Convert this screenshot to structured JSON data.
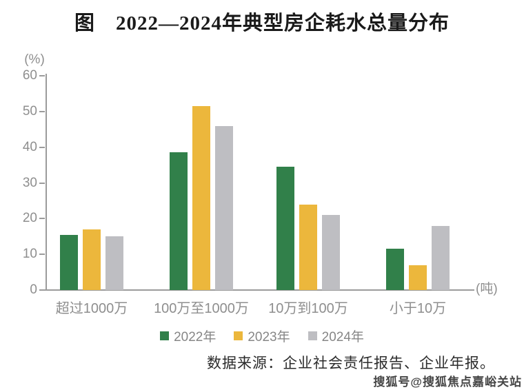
{
  "header": {
    "title": "图　2022—2024年典型房企耗水总量分布"
  },
  "chart_data": {
    "type": "bar",
    "title": "图 2022—2024年典型房企耗水总量分布",
    "xlabel": "",
    "ylabel": "(%)",
    "x_axis_unit": "(吨)",
    "y_axis_unit": "(%)",
    "categories": [
      "超过1000万",
      "100万至1000万",
      "10万到100万",
      "小于10万"
    ],
    "series": [
      {
        "name": "2022年",
        "color": "#31804a",
        "values": [
          15.5,
          38.5,
          34.5,
          11.5
        ]
      },
      {
        "name": "2023年",
        "color": "#ecb73c",
        "values": [
          17,
          51.5,
          24,
          7
        ]
      },
      {
        "name": "2024年",
        "color": "#bebec2",
        "values": [
          15,
          46,
          21,
          18
        ]
      }
    ],
    "ylim": [
      0,
      60
    ],
    "yticks": [
      0,
      10,
      20,
      30,
      40,
      50,
      60
    ],
    "grid": false,
    "legend_position": "bottom"
  },
  "footer": {
    "source_note": "数据来源：企业社会责任报告、企业年报。",
    "watermark": "搜狐号@搜狐焦点嘉峪关站"
  },
  "colors": {
    "series_2022": "#31804a",
    "series_2023": "#ecb73c",
    "series_2024": "#bebec2",
    "axis": "#9b9b9b",
    "axis_text": "#8e8e8e",
    "title_text": "#1a1a1a"
  }
}
